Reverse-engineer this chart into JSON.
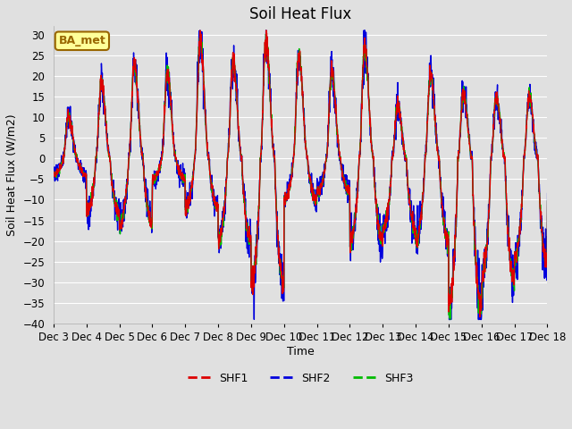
{
  "title": "Soil Heat Flux",
  "ylabel": "Soil Heat Flux (W/m2)",
  "xlabel": "Time",
  "ylim": [
    -40,
    32
  ],
  "yticks": [
    -40,
    -35,
    -30,
    -25,
    -20,
    -15,
    -10,
    -5,
    0,
    5,
    10,
    15,
    20,
    25,
    30
  ],
  "background_color": "#e0e0e0",
  "plot_bg_color": "#e0e0e0",
  "grid_color": "#ffffff",
  "colors": {
    "SHF1": "#dd0000",
    "SHF2": "#0000dd",
    "SHF3": "#00bb00"
  },
  "linewidths": {
    "SHF1": 1.0,
    "SHF2": 1.0,
    "SHF3": 1.0
  },
  "annotation_text": "BA_met",
  "annotation_bg": "#ffff99",
  "annotation_border": "#996600",
  "n_days": 16,
  "n_per_day": 144,
  "start_day": 3,
  "title_fontsize": 12,
  "label_fontsize": 9,
  "tick_fontsize": 8.5
}
